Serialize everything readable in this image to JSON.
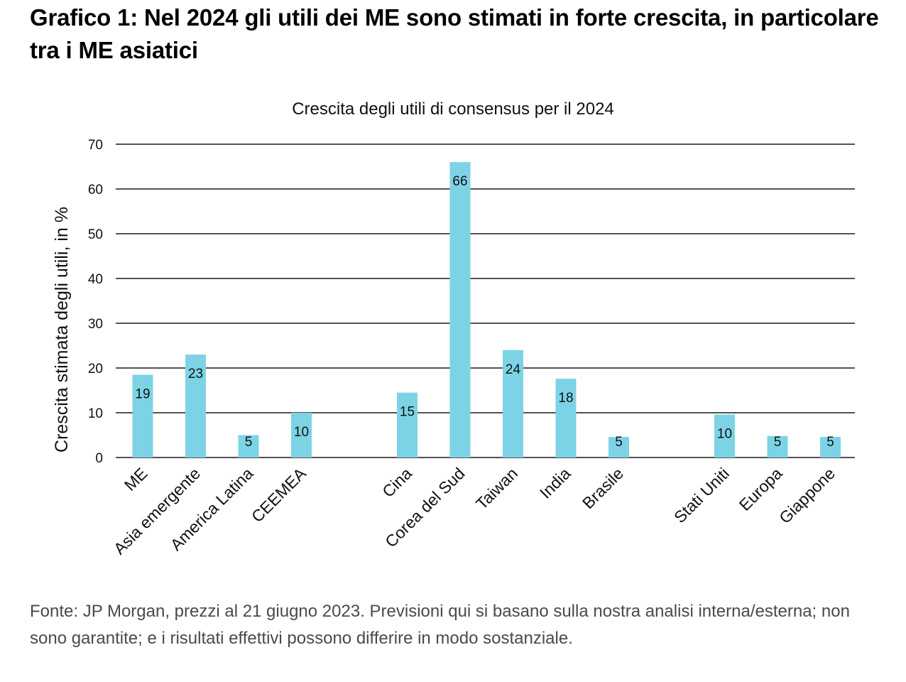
{
  "heading": "Grafico 1: Nel 2024 gli utili dei ME sono stimati in forte crescita, in particolare tra i ME asiatici",
  "source_note": "Fonte: JP Morgan, prezzi al 21 giugno 2023. Previsioni qui si basano sulla nostra analisi interna/esterna; non sono garantite; e i risultati effettivi possono differire in modo sostanziale.",
  "chart_data": {
    "type": "bar",
    "title": "Crescita degli utili di consensus per il 2024",
    "xlabel": "",
    "ylabel": "Crescita stimata degli utili, in %",
    "ylim": [
      0,
      70
    ],
    "yticks": [
      0,
      10,
      20,
      30,
      40,
      50,
      60,
      70
    ],
    "grid": true,
    "bar_color": "#7dd3e6",
    "categories": [
      "ME",
      "Asia emergente",
      "America Latina",
      "CEEMEA",
      "Cina",
      "Corea del Sud",
      "Taiwan",
      "India",
      "Brasile",
      "Stati Uniti",
      "Europa",
      "Giappone"
    ],
    "groups": [
      [
        0,
        1,
        2,
        3
      ],
      [
        4,
        5,
        6,
        7,
        8
      ],
      [
        9,
        10,
        11
      ]
    ],
    "values": [
      18.5,
      23,
      5,
      10,
      14.5,
      66,
      24,
      17.6,
      4.6,
      9.6,
      4.8,
      4.6
    ],
    "data_labels": [
      "19",
      "23",
      "5",
      "10",
      "15",
      "66",
      "24",
      "18",
      "5",
      "10",
      "5",
      "5"
    ]
  }
}
